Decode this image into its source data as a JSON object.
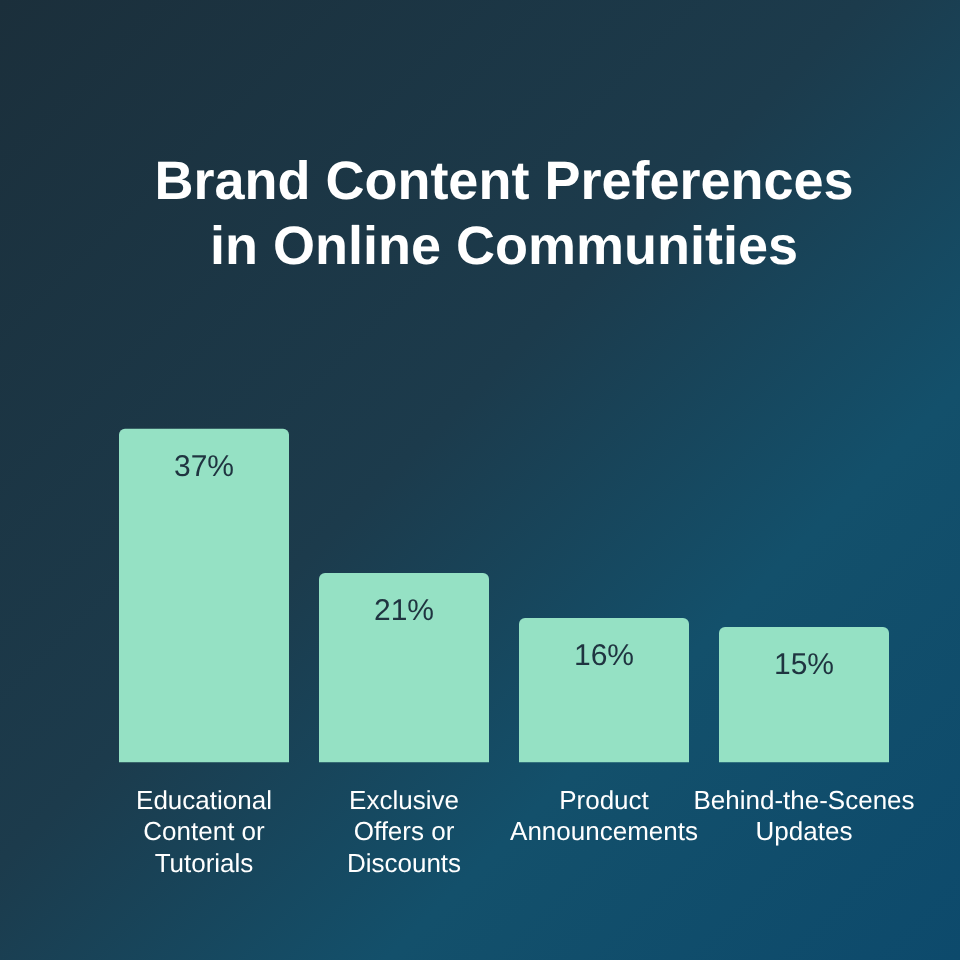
{
  "chart_data": {
    "type": "bar",
    "title": "Brand Content Preferences in Online Communities",
    "categories": [
      "Educational Content or Tutorials",
      "Exclusive Offers or Discounts",
      "Product Announcements",
      "Behind-the-Scenes Updates"
    ],
    "values": [
      37,
      21,
      16,
      15
    ],
    "color": "#95e1c4",
    "data_labels": true,
    "value_labels": [
      "37%",
      "21%",
      "16%",
      "15%"
    ],
    "grid": false,
    "legend": false
  }
}
